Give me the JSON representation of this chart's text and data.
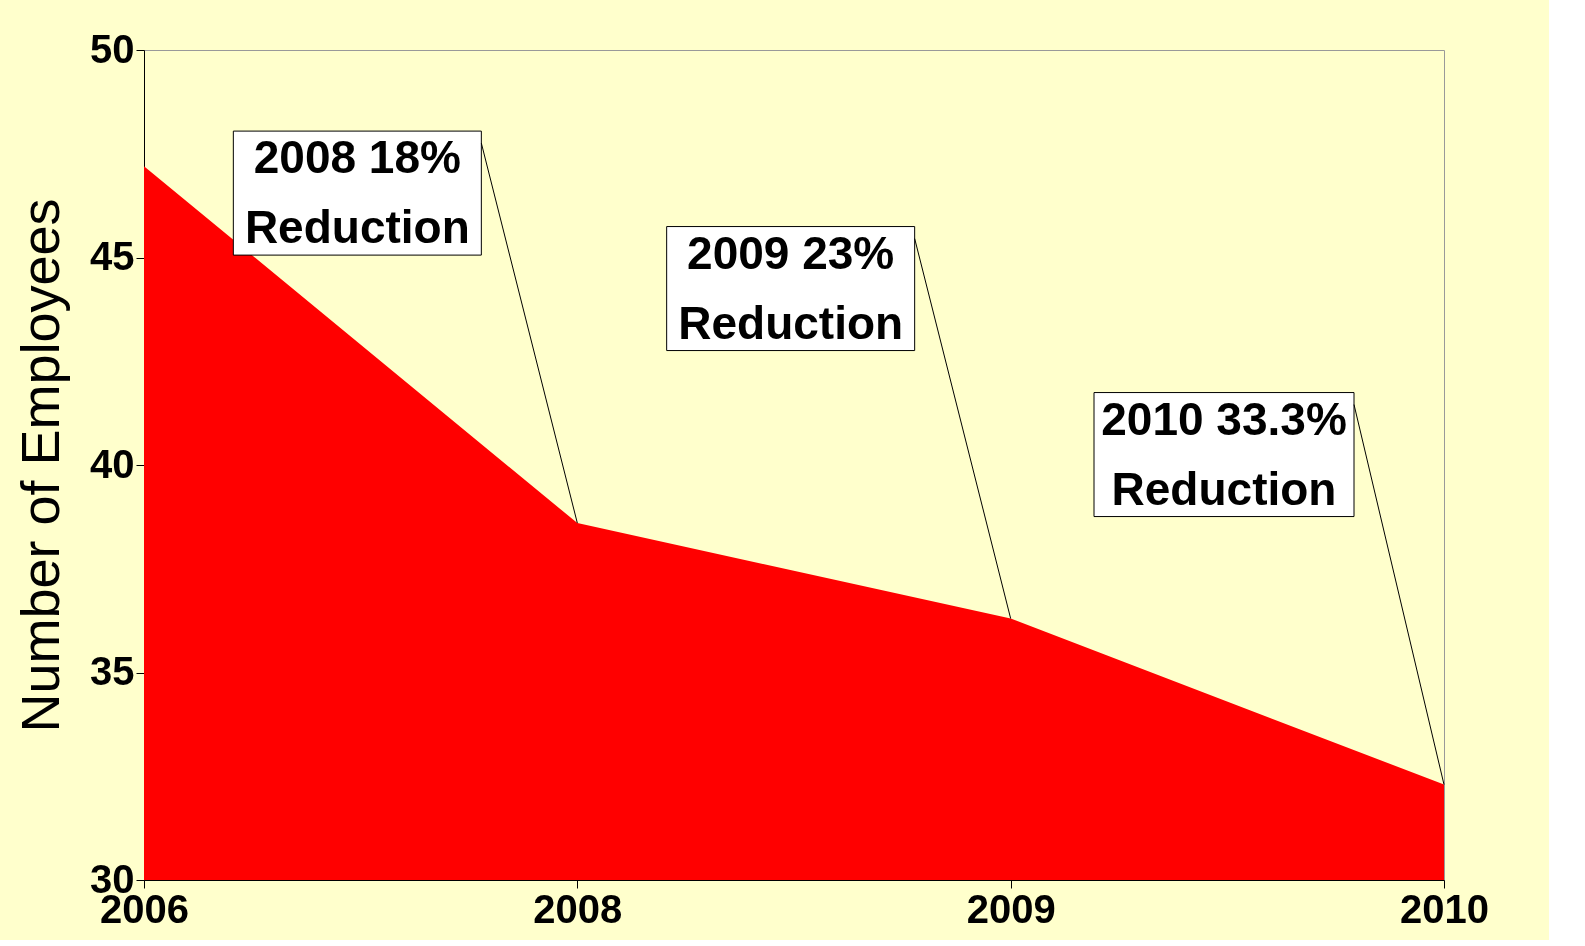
{
  "chart_data": {
    "type": "area",
    "ylabel": "Number of Employees",
    "categories": [
      "2006",
      "2008",
      "2009",
      "2010"
    ],
    "series": [
      {
        "color": "#ff0000",
        "values": [
          47.2,
          38.6,
          36.3,
          32.3
        ]
      }
    ],
    "ylim": [
      30,
      50
    ],
    "yticks": [
      30,
      35,
      40,
      45,
      50
    ],
    "grid": false,
    "annotations": [
      {
        "text": "2008 18%\nReduction",
        "x": "2008",
        "y": 38.6
      },
      {
        "text": "2009 23%\nReduction",
        "x": "2009",
        "y": 36.3
      },
      {
        "text": "2010 33.3%\nReduction",
        "x": "2010",
        "y": 32.3
      }
    ]
  }
}
